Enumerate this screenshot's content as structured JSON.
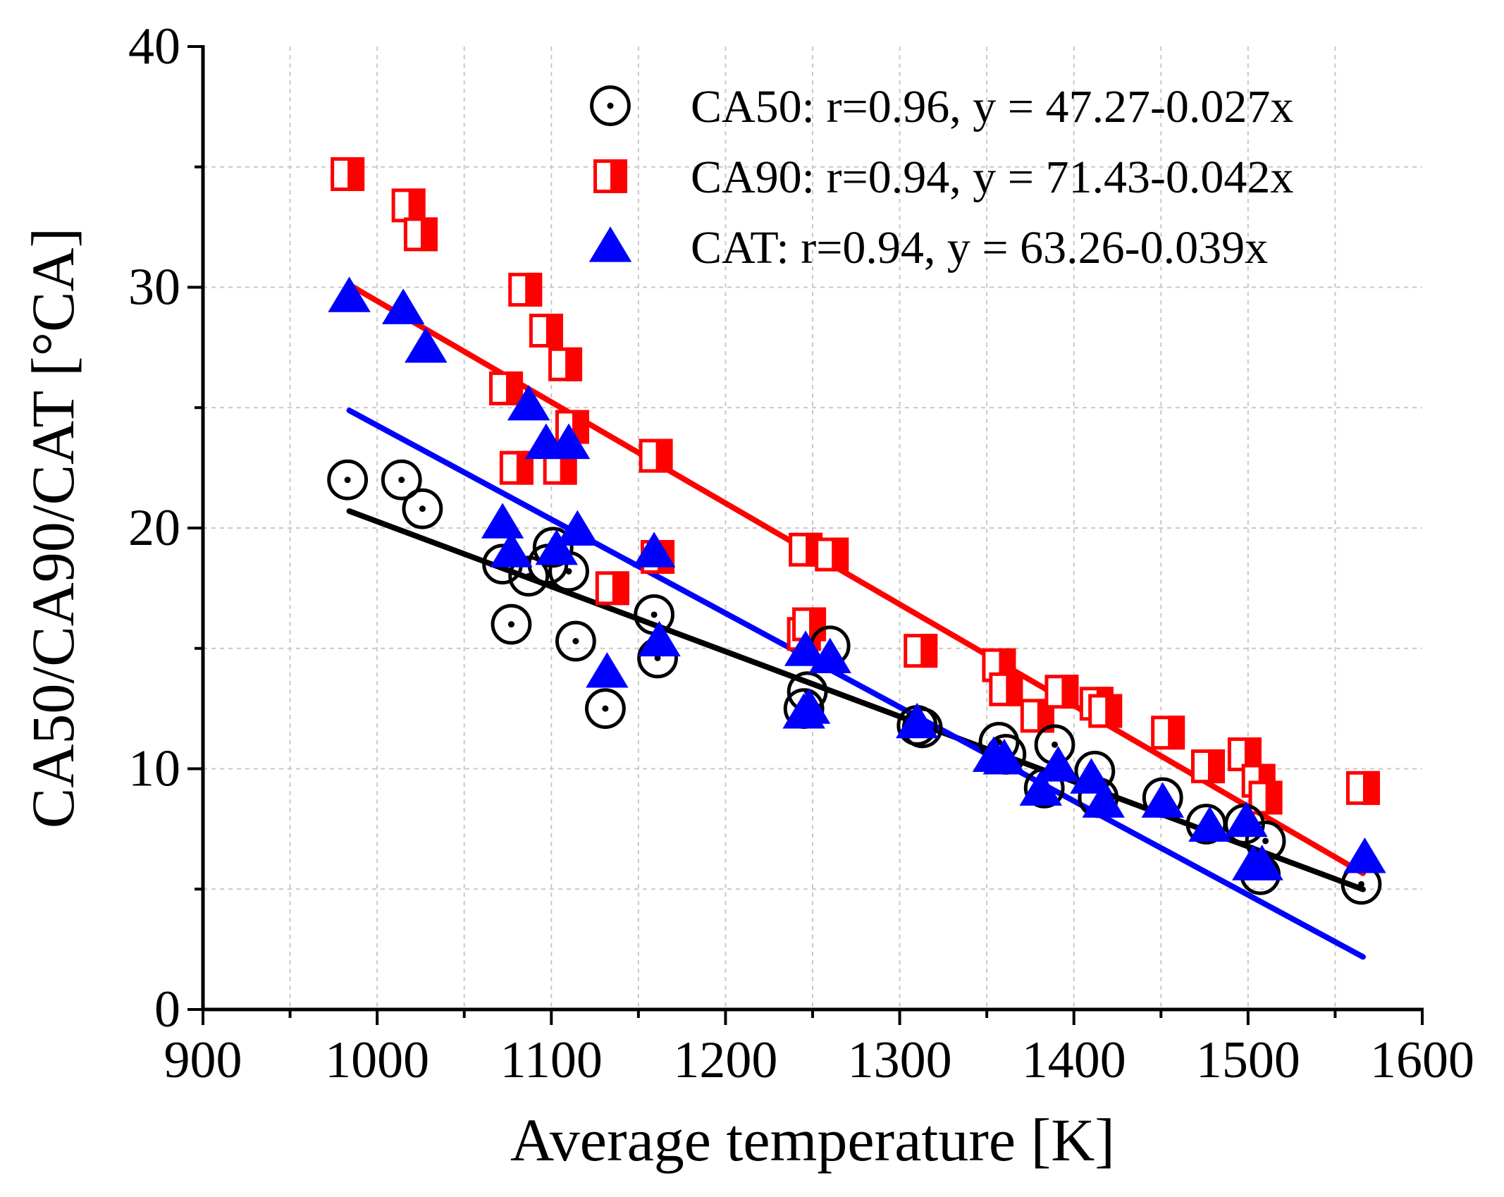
{
  "chart_data": {
    "type": "scatter",
    "xlabel": "Average temperature [K]",
    "ylabel": "CA50/CA90/CAT [°CA]",
    "xlim": [
      900,
      1600
    ],
    "ylim": [
      0,
      40
    ],
    "x_ticks": [
      900,
      1000,
      1100,
      1200,
      1300,
      1400,
      1500,
      1600
    ],
    "y_ticks": [
      0,
      10,
      20,
      30,
      40
    ],
    "x_tick_labels": [
      "900",
      "1000",
      "1100",
      "1200",
      "1300",
      "1400",
      "1500",
      "1600"
    ],
    "y_tick_labels": [
      "0",
      "10",
      "20",
      "30",
      "40"
    ],
    "grid": true,
    "legend_position": "top-right",
    "colors": {
      "CA50": "#000000",
      "CA90": "#ff0000",
      "CAT": "#0000ff"
    },
    "series": [
      {
        "name": "CA50",
        "label": "CA50: r=0.96, y = 47.27-0.027x",
        "marker": "circle-dot",
        "fit": {
          "intercept": 47.27,
          "slope": -0.027,
          "x_range": [
            984,
            1566
          ]
        },
        "points": [
          [
            983,
            22.0
          ],
          [
            1014,
            22.0
          ],
          [
            1026,
            20.8
          ],
          [
            1072,
            18.5
          ],
          [
            1077,
            16.0
          ],
          [
            1087,
            18.0
          ],
          [
            1098,
            18.5
          ],
          [
            1101,
            19.2
          ],
          [
            1110,
            18.2
          ],
          [
            1114,
            15.3
          ],
          [
            1131,
            12.5
          ],
          [
            1159,
            16.4
          ],
          [
            1161,
            14.6
          ],
          [
            1245,
            12.5
          ],
          [
            1247,
            13.2
          ],
          [
            1260,
            15.1
          ],
          [
            1310,
            11.8
          ],
          [
            1313,
            11.7
          ],
          [
            1357,
            11.1
          ],
          [
            1361,
            10.6
          ],
          [
            1383,
            9.2
          ],
          [
            1389,
            11.0
          ],
          [
            1412,
            9.9
          ],
          [
            1414,
            8.8
          ],
          [
            1451,
            8.8
          ],
          [
            1476,
            7.7
          ],
          [
            1498,
            7.7
          ],
          [
            1507,
            5.6
          ],
          [
            1510,
            7.0
          ],
          [
            1565,
            5.2
          ]
        ]
      },
      {
        "name": "CA90",
        "label": "CA90: r=0.94, y = 71.43-0.042x",
        "marker": "half-square",
        "fit": {
          "intercept": 71.43,
          "slope": -0.042,
          "x_range": [
            984,
            1566
          ]
        },
        "points": [
          [
            983,
            34.7
          ],
          [
            1018,
            33.4
          ],
          [
            1025,
            32.2
          ],
          [
            1085,
            29.9
          ],
          [
            1097,
            28.2
          ],
          [
            1108,
            26.8
          ],
          [
            1074,
            25.8
          ],
          [
            1112,
            24.2
          ],
          [
            1080,
            22.5
          ],
          [
            1105,
            22.5
          ],
          [
            1160,
            23.0
          ],
          [
            1135,
            17.5
          ],
          [
            1161,
            18.8
          ],
          [
            1246,
            19.1
          ],
          [
            1261,
            18.9
          ],
          [
            1245,
            15.6
          ],
          [
            1248,
            16.0
          ],
          [
            1312,
            14.9
          ],
          [
            1357,
            14.3
          ],
          [
            1361,
            13.3
          ],
          [
            1379,
            12.2
          ],
          [
            1393,
            13.2
          ],
          [
            1413,
            12.7
          ],
          [
            1418,
            12.4
          ],
          [
            1454,
            11.5
          ],
          [
            1477,
            10.1
          ],
          [
            1498,
            10.6
          ],
          [
            1506,
            9.5
          ],
          [
            1510,
            8.8
          ],
          [
            1566,
            9.2
          ]
        ]
      },
      {
        "name": "CAT",
        "label": "CAT: r=0.94, y = 63.26-0.039x",
        "marker": "triangle",
        "fit": {
          "intercept": 63.26,
          "slope": -0.039,
          "x_range": [
            984,
            1566
          ]
        },
        "points": [
          [
            984,
            29.6
          ],
          [
            1015,
            29.1
          ],
          [
            1028,
            27.5
          ],
          [
            1087,
            25.1
          ],
          [
            1097,
            23.5
          ],
          [
            1110,
            23.5
          ],
          [
            1072,
            20.2
          ],
          [
            1077,
            19.0
          ],
          [
            1103,
            19.1
          ],
          [
            1115,
            19.9
          ],
          [
            1159,
            19.0
          ],
          [
            1162,
            15.3
          ],
          [
            1132,
            14.0
          ],
          [
            1246,
            14.9
          ],
          [
            1260,
            14.6
          ],
          [
            1245,
            12.3
          ],
          [
            1248,
            12.5
          ],
          [
            1310,
            11.9
          ],
          [
            1354,
            10.5
          ],
          [
            1360,
            10.4
          ],
          [
            1381,
            9.1
          ],
          [
            1391,
            10.1
          ],
          [
            1410,
            9.6
          ],
          [
            1417,
            8.6
          ],
          [
            1451,
            8.6
          ],
          [
            1478,
            7.6
          ],
          [
            1499,
            7.8
          ],
          [
            1503,
            6.0
          ],
          [
            1508,
            6.0
          ],
          [
            1567,
            6.3
          ]
        ]
      }
    ]
  }
}
